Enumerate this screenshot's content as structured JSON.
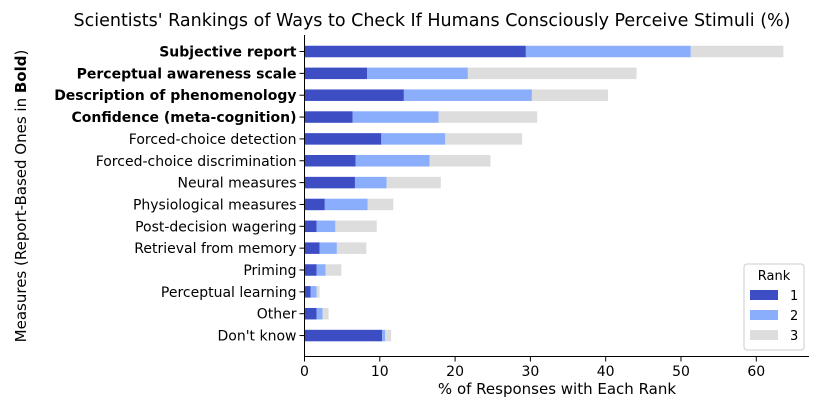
{
  "chart_data": {
    "type": "bar",
    "orientation": "horizontal",
    "stacked": true,
    "title": "Scientists' Rankings of Ways to Check If Humans Consciously Perceive Stimuli (%)",
    "xlabel": "% of Responses with Each Rank",
    "ylabel_prefix": "Measures (Report-Based Ones in ",
    "ylabel_bold": "Bold",
    "ylabel_suffix": ")",
    "xlim": [
      0,
      67
    ],
    "xticks": [
      "0",
      "10",
      "20",
      "30",
      "40",
      "50",
      "60"
    ],
    "categories": [
      "Subjective report",
      "Perceptual awareness scale",
      "Description of phenomenology",
      "Confidence (meta-cognition)",
      "Forced-choice detection",
      "Forced-choice discrimination",
      "Neural measures",
      "Physiological measures",
      "Post-decision wagering",
      "Retrieval from memory",
      "Priming",
      "Perceptual learning",
      "Other",
      "Don't know"
    ],
    "bold_categories": [
      true,
      true,
      true,
      true,
      false,
      false,
      false,
      false,
      false,
      false,
      false,
      false,
      false,
      false
    ],
    "series": [
      {
        "name": "1",
        "color": "#3d4ec4",
        "values": [
          29.4,
          8.3,
          13.2,
          6.4,
          10.2,
          6.8,
          6.7,
          2.7,
          1.6,
          2.0,
          1.6,
          0.8,
          1.6,
          10.3
        ]
      },
      {
        "name": "2",
        "color": "#8aaefc",
        "values": [
          21.9,
          13.4,
          17.0,
          11.4,
          8.5,
          9.8,
          4.2,
          5.7,
          2.5,
          2.3,
          1.2,
          0.8,
          0.8,
          0.4
        ]
      },
      {
        "name": "3",
        "color": "#dddddd",
        "values": [
          12.3,
          22.4,
          10.1,
          13.1,
          10.2,
          8.1,
          7.2,
          3.4,
          5.5,
          3.9,
          2.1,
          0.4,
          0.8,
          0.8
        ]
      }
    ],
    "legend": {
      "title": "Rank",
      "position": "bottom-right"
    },
    "grid": false
  }
}
